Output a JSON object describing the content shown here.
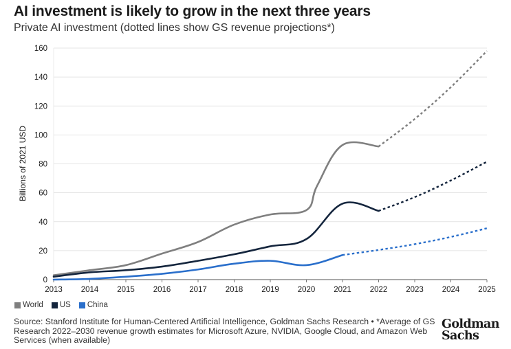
{
  "title": "AI investment is likely to grow in the next three years",
  "subtitle": "Private AI investment (dotted lines show GS revenue projections*)",
  "source": "Source: Stanford Institute for Human-Centered Artificial Intelligence, Goldman Sachs Research • *Average of GS Research 2022–2030 revenue growth estimates for Microsoft Azure, NVIDIA, Google Cloud, and Amazon Web Services (when available)",
  "logo": {
    "line1": "Goldman",
    "line2": "Sachs"
  },
  "chart_data": {
    "type": "line",
    "ylabel": "Billions of 2021 USD",
    "xlabel": "",
    "xlim": [
      2013,
      2025
    ],
    "ylim": [
      0,
      160
    ],
    "x_ticks": [
      "2013",
      "2014",
      "2015",
      "2016",
      "2017",
      "2018",
      "2019",
      "2020",
      "2021",
      "2022",
      "2023",
      "2024",
      "2025"
    ],
    "y_ticks": [
      "0",
      "20",
      "40",
      "60",
      "80",
      "100",
      "120",
      "140",
      "160"
    ],
    "grid": "horizontal",
    "legend_position": "bottom-left",
    "series": [
      {
        "name": "World",
        "color": "#7f7f7f",
        "x": [
          2013,
          2014,
          2015,
          2016,
          2017,
          2018,
          2019,
          2020,
          2020.3,
          2021,
          2022
        ],
        "y": [
          3,
          6.5,
          10,
          18,
          26,
          38,
          45,
          48,
          65,
          93,
          92
        ],
        "projection": {
          "x": [
            2022,
            2023,
            2024,
            2025
          ],
          "y": [
            92,
            111,
            133,
            158
          ]
        }
      },
      {
        "name": "US",
        "color": "#14253d",
        "x": [
          2013,
          2014,
          2015,
          2016,
          2017,
          2018,
          2019,
          2020,
          2021,
          2022
        ],
        "y": [
          2,
          5,
          6.5,
          9,
          13,
          17.5,
          23,
          28,
          52.5,
          47.5
        ],
        "projection": {
          "x": [
            2022,
            2023,
            2024,
            2025
          ],
          "y": [
            47.5,
            57,
            68.5,
            81.5
          ]
        }
      },
      {
        "name": "China",
        "color": "#2a6fcb",
        "x": [
          2013,
          2014,
          2015,
          2016,
          2017,
          2018,
          2019,
          2020,
          2021
        ],
        "y": [
          0,
          0.5,
          2,
          4,
          7,
          11,
          13,
          10,
          17
        ],
        "projection": {
          "x": [
            2021,
            2022,
            2023,
            2024,
            2025
          ],
          "y": [
            17,
            20.5,
            24.5,
            29.5,
            35.5
          ]
        }
      }
    ]
  }
}
